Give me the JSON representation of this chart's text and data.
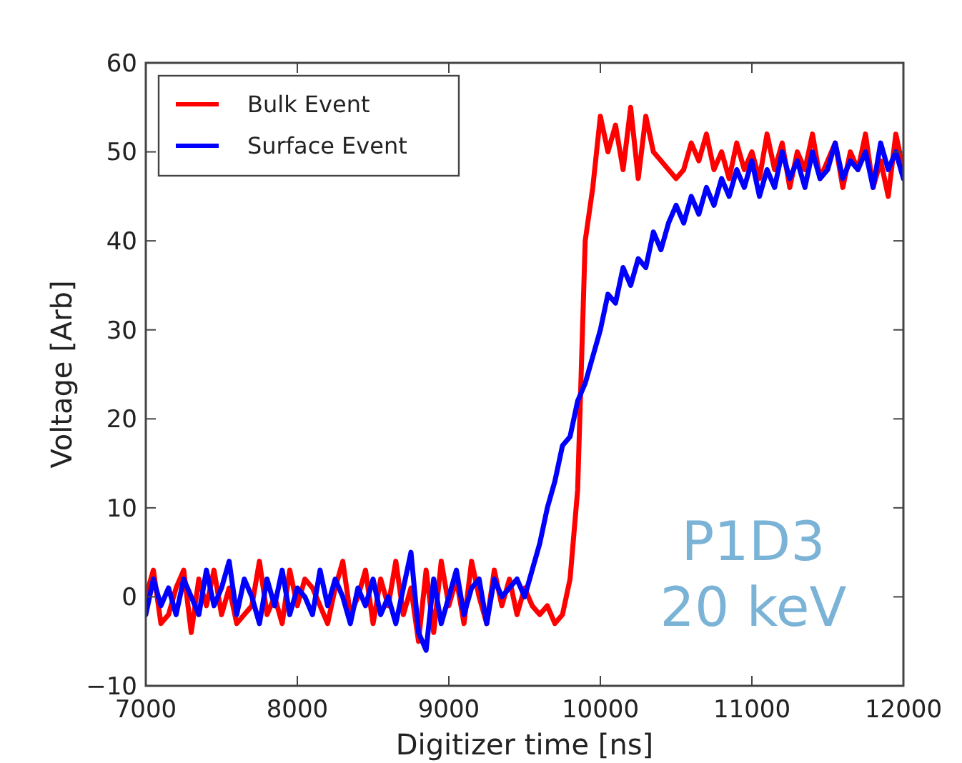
{
  "chart_data": {
    "type": "line",
    "xlabel": "Digitizer time [ns]",
    "ylabel": "Voltage [Arb]",
    "x": [
      7000,
      7050,
      7100,
      7150,
      7200,
      7250,
      7300,
      7350,
      7400,
      7450,
      7500,
      7550,
      7600,
      7650,
      7700,
      7750,
      7800,
      7850,
      7900,
      7950,
      8000,
      8050,
      8100,
      8150,
      8200,
      8250,
      8300,
      8350,
      8400,
      8450,
      8500,
      8550,
      8600,
      8650,
      8700,
      8750,
      8800,
      8850,
      8900,
      8950,
      9000,
      9050,
      9100,
      9150,
      9200,
      9250,
      9300,
      9350,
      9400,
      9450,
      9500,
      9550,
      9600,
      9650,
      9700,
      9750,
      9800,
      9850,
      9900,
      9950,
      10000,
      10050,
      10100,
      10150,
      10200,
      10250,
      10300,
      10350,
      10400,
      10450,
      10500,
      10550,
      10600,
      10650,
      10700,
      10750,
      10800,
      10850,
      10900,
      10950,
      11000,
      11050,
      11100,
      11150,
      11200,
      11250,
      11300,
      11350,
      11400,
      11450,
      11500,
      11550,
      11600,
      11650,
      11700,
      11750,
      11800,
      11850,
      11900,
      11950,
      12000
    ],
    "series": [
      {
        "name": "Bulk Event",
        "color": "#ff0000",
        "values": [
          0,
          3,
          -3,
          -2,
          1,
          3,
          -4,
          2,
          -1,
          3,
          -2,
          1,
          -3,
          -2,
          -1,
          4,
          -2,
          0,
          -3,
          3,
          -1,
          2,
          1,
          -1,
          -3,
          1,
          4,
          -2,
          0,
          3,
          -3,
          2,
          -1,
          4,
          -2,
          1,
          -5,
          3,
          -4,
          4,
          -1,
          2,
          -3,
          4,
          0,
          -3,
          3,
          -1,
          2,
          -2,
          1,
          -1,
          -2,
          -1,
          -3,
          -2,
          2,
          12,
          40,
          46,
          54,
          50,
          53,
          48,
          55,
          47,
          54,
          50,
          49,
          48,
          47,
          48,
          51,
          49,
          52,
          48,
          50,
          47,
          51,
          48,
          50,
          47,
          52,
          48,
          51,
          46,
          50,
          48,
          52,
          47,
          49,
          51,
          46,
          50,
          48,
          52,
          46,
          49,
          45,
          52,
          48
        ]
      },
      {
        "name": "Surface Event",
        "color": "#0000ff",
        "values": [
          -2,
          2,
          -1,
          1,
          -2,
          2,
          0,
          -2,
          3,
          -1,
          1,
          4,
          -2,
          2,
          0,
          -3,
          2,
          -1,
          3,
          -2,
          1,
          0,
          -2,
          3,
          -1,
          2,
          0,
          -3,
          1,
          -1,
          2,
          -2,
          0,
          -3,
          1,
          5,
          -4,
          -6,
          2,
          -3,
          0,
          3,
          -2,
          1,
          2,
          -3,
          2,
          0,
          1,
          2,
          0,
          3,
          6,
          10,
          13,
          17,
          18,
          22,
          24,
          27,
          30,
          34,
          33,
          37,
          35,
          38,
          37,
          41,
          39,
          42,
          44,
          42,
          45,
          43,
          46,
          44,
          47,
          45,
          48,
          46,
          49,
          45,
          48,
          46,
          50,
          47,
          49,
          46,
          50,
          47,
          48,
          51,
          47,
          49,
          48,
          50,
          46,
          51,
          48,
          50,
          47
        ]
      }
    ],
    "xlim": [
      7000,
      12000
    ],
    "xticks": [
      7000,
      8000,
      9000,
      10000,
      11000,
      12000
    ],
    "ylim": [
      -10,
      60
    ],
    "yticks": [
      -10,
      0,
      10,
      20,
      30,
      40,
      50,
      60
    ],
    "legend": "top left",
    "grid": false,
    "marker": "none",
    "line_style": "solid",
    "annotations": [
      "P1D3",
      "20 keV"
    ]
  }
}
